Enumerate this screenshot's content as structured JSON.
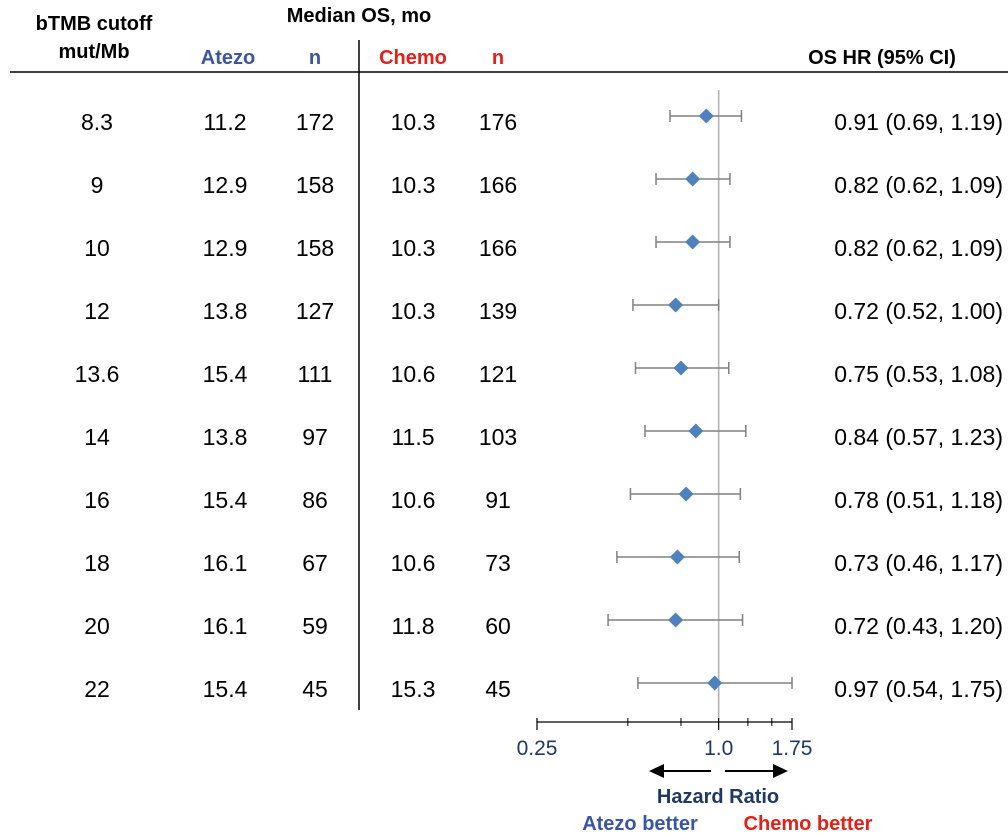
{
  "header": {
    "col_cutoff_line1": "bTMB cutoff",
    "col_cutoff_line2": "mut/Mb",
    "group_title": "Median OS, mo",
    "col_atezo": "Atezo",
    "col_atezo_n": "n",
    "col_chemo": "Chemo",
    "col_chemo_n": "n",
    "col_hr": "OS HR (95% CI)"
  },
  "colors": {
    "atezo": "#3a55a4",
    "chemo": "#e32119",
    "marker": "#4f81bd",
    "whisker": "#808080",
    "axis_text": "#1f3864"
  },
  "rows": [
    {
      "cutoff": "8.3",
      "atezo": "11.2",
      "atezo_n": "172",
      "chemo": "10.3",
      "chemo_n": "176",
      "hr_text": "0.91 (0.69, 1.19)"
    },
    {
      "cutoff": "9",
      "atezo": "12.9",
      "atezo_n": "158",
      "chemo": "10.3",
      "chemo_n": "166",
      "hr_text": "0.82 (0.62, 1.09)"
    },
    {
      "cutoff": "10",
      "atezo": "12.9",
      "atezo_n": "158",
      "chemo": "10.3",
      "chemo_n": "166",
      "hr_text": "0.82 (0.62, 1.09)"
    },
    {
      "cutoff": "12",
      "atezo": "13.8",
      "atezo_n": "127",
      "chemo": "10.3",
      "chemo_n": "139",
      "hr_text": "0.72 (0.52, 1.00)"
    },
    {
      "cutoff": "13.6",
      "atezo": "15.4",
      "atezo_n": "111",
      "chemo": "10.6",
      "chemo_n": "121",
      "hr_text": "0.75 (0.53, 1.08)"
    },
    {
      "cutoff": "14",
      "atezo": "13.8",
      "atezo_n": "97",
      "chemo": "11.5",
      "chemo_n": "103",
      "hr_text": "0.84 (0.57, 1.23)"
    },
    {
      "cutoff": "16",
      "atezo": "15.4",
      "atezo_n": "86",
      "chemo": "10.6",
      "chemo_n": "91",
      "hr_text": "0.78 (0.51, 1.18)"
    },
    {
      "cutoff": "18",
      "atezo": "16.1",
      "atezo_n": "67",
      "chemo": "10.6",
      "chemo_n": "73",
      "hr_text": "0.73 (0.46, 1.17)"
    },
    {
      "cutoff": "20",
      "atezo": "16.1",
      "atezo_n": "59",
      "chemo": "11.8",
      "chemo_n": "60",
      "hr_text": "0.72 (0.43, 1.20)"
    },
    {
      "cutoff": "22",
      "atezo": "15.4",
      "atezo_n": "45",
      "chemo": "15.3",
      "chemo_n": "45",
      "hr_text": "0.97 (0.54, 1.75)"
    }
  ],
  "chart_data": {
    "type": "scatter",
    "x_scale": "log",
    "xlim": [
      0.25,
      1.75
    ],
    "x_ticks": [
      0.25,
      1.0,
      1.75
    ],
    "x_tick_labels": [
      "0.25",
      "1.0",
      "1.75"
    ],
    "reference_line": 1.0,
    "xlabel": "Hazard Ratio",
    "left_direction_label": "Atezo better",
    "right_direction_label": "Chemo better",
    "categories": [
      "8.3",
      "9",
      "10",
      "12",
      "13.6",
      "14",
      "16",
      "18",
      "20",
      "22"
    ],
    "hr": [
      0.91,
      0.82,
      0.82,
      0.72,
      0.75,
      0.84,
      0.78,
      0.73,
      0.72,
      0.97
    ],
    "lower": [
      0.69,
      0.62,
      0.62,
      0.52,
      0.53,
      0.57,
      0.51,
      0.46,
      0.43,
      0.54
    ],
    "upper": [
      1.19,
      1.09,
      1.09,
      1.0,
      1.08,
      1.23,
      1.18,
      1.17,
      1.2,
      1.75
    ]
  }
}
